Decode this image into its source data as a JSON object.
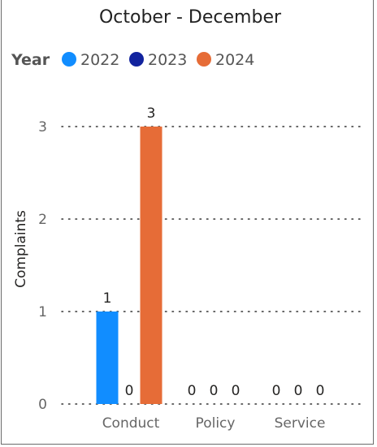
{
  "chart_data": {
    "type": "bar",
    "title": "October - December",
    "legend_title": "Year",
    "legend_position": "top-left",
    "categories": [
      "Conduct",
      "Policy",
      "Service"
    ],
    "series": [
      {
        "name": "2022",
        "color": "#118DFF",
        "values": [
          1,
          0,
          0
        ]
      },
      {
        "name": "2023",
        "color": "#12239E",
        "values": [
          0,
          0,
          0
        ]
      },
      {
        "name": "2024",
        "color": "#E66C37",
        "values": [
          3,
          0,
          0
        ]
      }
    ],
    "ylabel": "Complaints",
    "xlabel": "",
    "ylim": [
      0,
      3
    ],
    "yticks": [
      0,
      1,
      2,
      3
    ],
    "grid": true,
    "data_labels": true
  }
}
